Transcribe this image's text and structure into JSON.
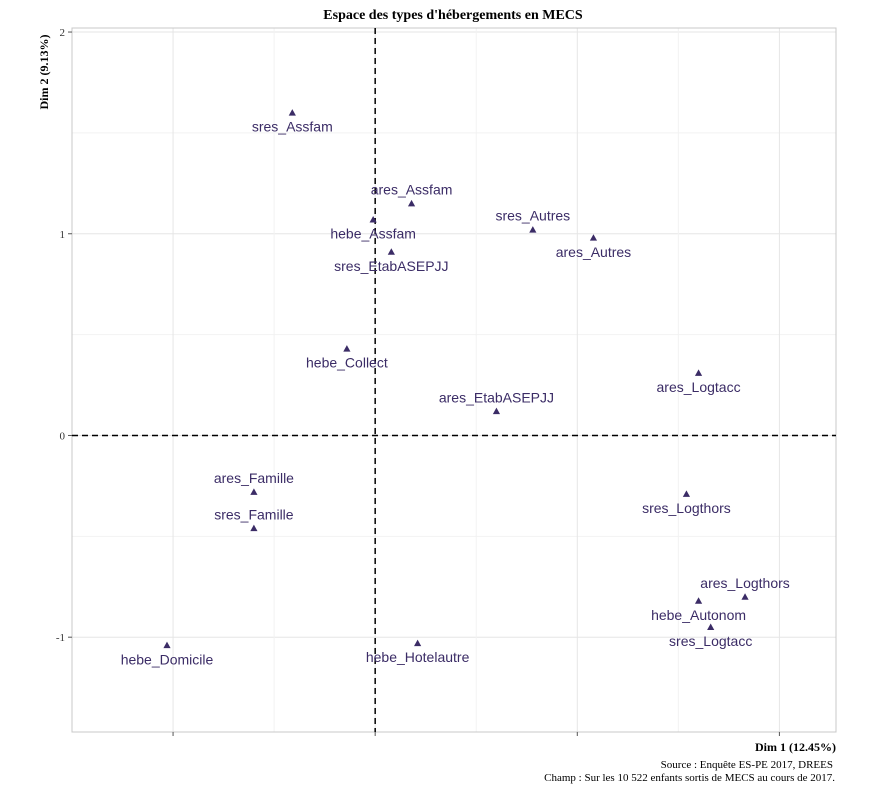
{
  "chart_data": {
    "type": "scatter",
    "title": "Espace des types d'hébergements en MECS",
    "xlabel": "Dim 1 (12.45%)",
    "ylabel": "Dim 2 (9.13%)",
    "xlim": [
      -1.5,
      2.28
    ],
    "ylim": [
      -1.47,
      2.02
    ],
    "x_ticks": [],
    "y_ticks": [
      2,
      1,
      0,
      -1
    ],
    "grid": true,
    "reference_lines": {
      "x": 0,
      "y": 0
    },
    "point_color": "#3b2c66",
    "marker": "triangle",
    "points": [
      {
        "label": "sres_Assfam",
        "x": -0.41,
        "y": 1.6,
        "label_pos": "below"
      },
      {
        "label": "ares_Assfam",
        "x": 0.18,
        "y": 1.15,
        "label_pos": "above"
      },
      {
        "label": "hebe_Assfam",
        "x": -0.01,
        "y": 1.07,
        "label_pos": "below"
      },
      {
        "label": "sres_EtabASEPJJ",
        "x": 0.08,
        "y": 0.91,
        "label_pos": "below"
      },
      {
        "label": "sres_Autres",
        "x": 0.78,
        "y": 1.02,
        "label_pos": "above"
      },
      {
        "label": "ares_Autres",
        "x": 1.08,
        "y": 0.98,
        "label_pos": "below"
      },
      {
        "label": "hebe_Collect",
        "x": -0.14,
        "y": 0.43,
        "label_pos": "below"
      },
      {
        "label": "ares_Logtacc",
        "x": 1.6,
        "y": 0.31,
        "label_pos": "below"
      },
      {
        "label": "ares_EtabASEPJJ",
        "x": 0.6,
        "y": 0.12,
        "label_pos": "above"
      },
      {
        "label": "ares_Famille",
        "x": -0.6,
        "y": -0.28,
        "label_pos": "above"
      },
      {
        "label": "sres_Famille",
        "x": -0.6,
        "y": -0.46,
        "label_pos": "above"
      },
      {
        "label": "sres_Logthors",
        "x": 1.54,
        "y": -0.29,
        "label_pos": "below"
      },
      {
        "label": "ares_Logthors",
        "x": 1.83,
        "y": -0.8,
        "label_pos": "above"
      },
      {
        "label": "hebe_Autonom",
        "x": 1.6,
        "y": -0.82,
        "label_pos": "below"
      },
      {
        "label": "sres_Logtacc",
        "x": 1.66,
        "y": -0.95,
        "label_pos": "below"
      },
      {
        "label": "hebe_Domicile",
        "x": -1.03,
        "y": -1.04,
        "label_pos": "below"
      },
      {
        "label": "hebe_Hotelautre",
        "x": 0.21,
        "y": -1.03,
        "label_pos": "below"
      }
    ]
  },
  "captions": {
    "source": "Source : Enquête ES-PE 2017, DREES",
    "champ": "Champ : Sur les 10 522 enfants sortis de MECS au cours de 2017."
  }
}
